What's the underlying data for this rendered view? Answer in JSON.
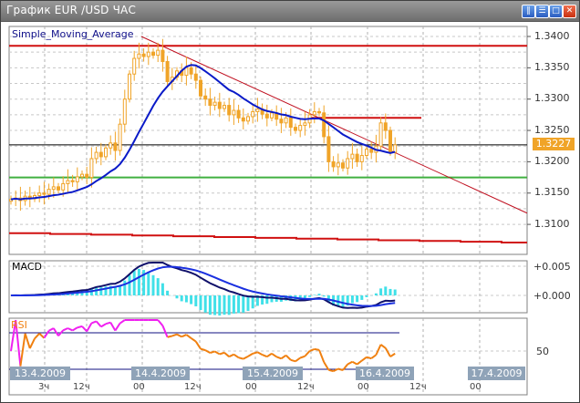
{
  "window": {
    "title": "График EUR /USD  ЧАС",
    "buttons": [
      "tile-icon",
      "minimize-icon",
      "maximize-icon",
      "close-icon"
    ]
  },
  "main_panel": {
    "indicator_label": "Simple_Moving_Average",
    "price_axis": [
      "1.3400",
      "1.3350",
      "1.3300",
      "1.3250",
      "1.3200",
      "1.3150",
      "1.3100"
    ],
    "current_price": "1.3227"
  },
  "macd_panel": {
    "label": "MACD",
    "axis": [
      "+0.005",
      "+0.000"
    ]
  },
  "rsi_panel": {
    "label": "RSI",
    "axis": [
      "50"
    ],
    "levels": [
      70,
      30
    ]
  },
  "time_axis": {
    "dates": [
      "13.4.2009",
      "14.4.2009",
      "15.4.2009",
      "16.4.2009",
      "17.4.2009"
    ],
    "hours": [
      "3ч",
      "12ч",
      "00",
      "12ч",
      "00",
      "12ч",
      "00",
      "12ч",
      "00"
    ]
  },
  "colors": {
    "candles": "#f0a428",
    "sma": "#0a1ac8",
    "resistance": "#d01010",
    "support": "#40b040",
    "trendline": "#c01020",
    "macd_main": "#10106a",
    "macd_signal": "#1a30e0",
    "macd_hist": "#40e0e8",
    "rsi": "#f08010",
    "rsi_overbought": "#f020f0",
    "price_tag": "#f0a428"
  },
  "chart_data": {
    "type": "candlestick",
    "timeframe": "H1",
    "ylim": [
      1.3065,
      1.3415
    ],
    "closes": [
      1.314,
      1.3142,
      1.3138,
      1.3145,
      1.3141,
      1.3146,
      1.315,
      1.3148,
      1.3156,
      1.316,
      1.3155,
      1.3165,
      1.317,
      1.3168,
      1.3176,
      1.318,
      1.3175,
      1.3205,
      1.3215,
      1.3208,
      1.3222,
      1.323,
      1.3218,
      1.326,
      1.33,
      1.334,
      1.3365,
      1.3372,
      1.3368,
      1.3375,
      1.337,
      1.3378,
      1.336,
      1.3328,
      1.3335,
      1.3345,
      1.3338,
      1.335,
      1.334,
      1.333,
      1.3305,
      1.33,
      1.329,
      1.3295,
      1.3285,
      1.329,
      1.3275,
      1.3282,
      1.327,
      1.3265,
      1.3272,
      1.328,
      1.3284,
      1.3276,
      1.327,
      1.3278,
      1.3268,
      1.3262,
      1.327,
      1.3255,
      1.325,
      1.3258,
      1.3262,
      1.3275,
      1.328,
      1.3278,
      1.324,
      1.32,
      1.3192,
      1.3198,
      1.319,
      1.3205,
      1.3212,
      1.32,
      1.321,
      1.322,
      1.3215,
      1.3225,
      1.3262,
      1.325,
      1.3215,
      1.3227
    ],
    "sma_period": 14,
    "horizontal_lines": [
      1.3385,
      1.3227,
      1.3175
    ],
    "resistance_segment": 1.327,
    "lower_line": [
      1.3086,
      1.3071
    ],
    "trendline": [
      1.34,
      1.3118
    ]
  }
}
